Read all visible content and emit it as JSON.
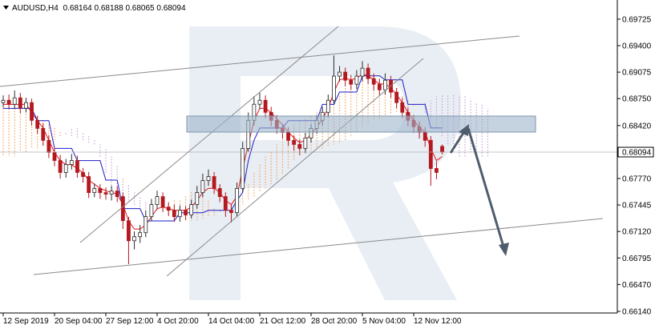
{
  "chart_data": {
    "type": "candlestick",
    "symbol": "AUDUSD,H4",
    "header_ohlc": [
      0.68164,
      0.68188,
      0.68065,
      0.68094
    ],
    "last_price": 0.68094,
    "up_color": "#2b2b2b",
    "down_color": "#b3191f",
    "categories": [
      "12 Sep 2019",
      null,
      null,
      null,
      null,
      null,
      null,
      null,
      null,
      "20 Sep 04:00",
      null,
      null,
      null,
      null,
      null,
      null,
      null,
      null,
      "27 Sep 12:00",
      null,
      null,
      null,
      null,
      null,
      null,
      null,
      null,
      "4 Oct 20:00",
      null,
      null,
      null,
      null,
      null,
      null,
      null,
      null,
      "14 Oct 04:00",
      null,
      null,
      null,
      null,
      null,
      null,
      null,
      null,
      "21 Oct 12:00",
      null,
      null,
      null,
      null,
      null,
      null,
      null,
      null,
      "28 Oct 20:00",
      null,
      null,
      null,
      null,
      null,
      null,
      null,
      null,
      "5 Nov 04:00",
      null,
      null,
      null,
      null,
      null,
      null,
      null,
      null,
      "12 Nov 12:00",
      null,
      null,
      null,
      null,
      null,
      null,
      null,
      null,
      null,
      null,
      null,
      null,
      null
    ],
    "open": [
      0.687,
      0.6873,
      0.68681,
      0.6876,
      0.68632,
      0.68701,
      0.68484,
      0.68385,
      0.68238,
      0.6809,
      0.67991,
      0.67844,
      0.67942,
      0.67991,
      0.67844,
      0.67794,
      0.67597,
      0.67647,
      0.67597,
      0.67578,
      0.67617,
      0.67548,
      0.67253,
      0.67006,
      0.67056,
      0.67105,
      0.67302,
      0.6745,
      0.67548,
      0.6742,
      0.67381,
      0.67302,
      0.67381,
      0.67322,
      0.6745,
      0.67597,
      0.67745,
      0.67794,
      0.67647,
      0.67548,
      0.67381,
      0.67351,
      0.67647,
      0.68139,
      0.68484,
      0.68681,
      0.6873,
      0.68582,
      0.68484,
      0.68385,
      0.68336,
      0.68238,
      0.68188,
      0.68139,
      0.68267,
      0.68385,
      0.68484,
      0.68582,
      0.6873,
      0.69026,
      0.69075,
      0.68976,
      0.68927,
      0.69026,
      0.69124,
      0.68996,
      0.68927,
      0.68858,
      0.68976,
      0.68829,
      0.68701,
      0.68582,
      0.68484,
      0.68405,
      0.68336,
      0.68238,
      0.67893,
      0.68164,
      null,
      null,
      null,
      null,
      null,
      null,
      null,
      null
    ],
    "high": [
      0.6879,
      0.688,
      0.6885,
      0.6882,
      0.6876,
      0.6875,
      0.6854,
      0.6845,
      0.683,
      0.6815,
      0.6806,
      0.6801,
      0.6807,
      0.6805,
      0.679,
      0.6785,
      0.6771,
      0.677,
      0.6766,
      0.6768,
      0.6767,
      0.676,
      0.673,
      0.6712,
      0.672,
      0.6738,
      0.6752,
      0.6762,
      0.676,
      0.6748,
      0.6745,
      0.6744,
      0.6743,
      0.6751,
      0.6768,
      0.6783,
      0.6788,
      0.6785,
      0.677,
      0.676,
      0.6745,
      0.6772,
      0.6822,
      0.6858,
      0.6878,
      0.6882,
      0.6879,
      0.6865,
      0.6855,
      0.6844,
      0.684,
      0.683,
      0.6825,
      0.6833,
      0.6844,
      0.6855,
      0.6865,
      0.688,
      0.6928,
      0.6915,
      0.6913,
      0.6904,
      0.691,
      0.6921,
      0.6918,
      0.6906,
      0.6899,
      0.6906,
      0.6903,
      0.6888,
      0.6876,
      0.6864,
      0.6855,
      0.6847,
      0.684,
      0.6829,
      0.6798,
      0.68188,
      null,
      null,
      null,
      null,
      null,
      null,
      null,
      null
    ],
    "low": [
      0.6864,
      0.6862,
      0.6862,
      0.6857,
      0.6858,
      0.6842,
      0.6832,
      0.6817,
      0.6802,
      0.6792,
      0.6777,
      0.6778,
      0.6788,
      0.6778,
      0.6772,
      0.6753,
      0.6754,
      0.6752,
      0.6751,
      0.675,
      0.6748,
      0.6715,
      0.6672,
      0.669,
      0.6698,
      0.6705,
      0.6725,
      0.674,
      0.6736,
      0.6731,
      0.6724,
      0.6724,
      0.6726,
      0.6728,
      0.674,
      0.6754,
      0.6768,
      0.6758,
      0.6748,
      0.673,
      0.6723,
      0.673,
      0.676,
      0.681,
      0.6842,
      0.6862,
      0.6851,
      0.6841,
      0.6832,
      0.6826,
      0.6817,
      0.6811,
      0.6806,
      0.6808,
      0.6821,
      0.6832,
      0.6842,
      0.6852,
      0.6868,
      0.6896,
      0.689,
      0.6886,
      0.6887,
      0.6896,
      0.6893,
      0.6885,
      0.6879,
      0.688,
      0.6876,
      0.6863,
      0.6851,
      0.6841,
      0.6833,
      0.6826,
      0.6816,
      0.6768,
      0.6776,
      0.68065,
      null,
      null,
      null,
      null,
      null,
      null,
      null,
      null
    ],
    "close": [
      0.6873,
      0.68681,
      0.6876,
      0.68632,
      0.68701,
      0.68484,
      0.68385,
      0.68238,
      0.6809,
      0.67991,
      0.67844,
      0.67942,
      0.67991,
      0.67844,
      0.67794,
      0.67597,
      0.67647,
      0.67597,
      0.67578,
      0.67617,
      0.67548,
      0.67253,
      0.67006,
      0.67056,
      0.67105,
      0.67302,
      0.6745,
      0.67548,
      0.6742,
      0.67381,
      0.67302,
      0.67381,
      0.67322,
      0.6745,
      0.67597,
      0.67745,
      0.67794,
      0.67647,
      0.67548,
      0.67381,
      0.67351,
      0.67647,
      0.68139,
      0.68484,
      0.68681,
      0.6873,
      0.68582,
      0.68484,
      0.68385,
      0.68336,
      0.68238,
      0.68188,
      0.68139,
      0.68267,
      0.68385,
      0.68484,
      0.68582,
      0.6873,
      0.69026,
      0.69075,
      0.68976,
      0.68927,
      0.69026,
      0.69124,
      0.68996,
      0.68927,
      0.68858,
      0.68976,
      0.68829,
      0.68701,
      0.68582,
      0.68484,
      0.68405,
      0.68336,
      0.68238,
      0.67893,
      0.67844,
      0.68094,
      null,
      null,
      null,
      null,
      null,
      null,
      null,
      null
    ],
    "series": [
      {
        "color": "#e3141b",
        "values": [
          0.6868,
          0.6868,
          0.6868,
          0.6868,
          0.6868,
          0.6858,
          0.6848,
          0.6839,
          0.6824,
          0.6809,
          0.6799,
          0.6794,
          0.6794,
          0.6789,
          0.6784,
          0.6775,
          0.677,
          0.6765,
          0.6762,
          0.676,
          0.6758,
          0.6745,
          0.6725,
          0.6715,
          0.6715,
          0.672,
          0.673,
          0.674,
          0.6742,
          0.674,
          0.6738,
          0.6738,
          0.6738,
          0.6742,
          0.675,
          0.676,
          0.6765,
          0.6765,
          0.676,
          0.675,
          0.6745,
          0.6755,
          0.6789,
          0.6819,
          0.6848,
          0.6863,
          0.6863,
          0.6858,
          0.685,
          0.6843,
          0.6834,
          0.6827,
          0.6821,
          0.6824,
          0.6831,
          0.684,
          0.685,
          0.6863,
          0.6883,
          0.6898,
          0.69,
          0.6898,
          0.69,
          0.6905,
          0.6903,
          0.6898,
          0.6893,
          0.6893,
          0.6888,
          0.688,
          0.687,
          0.6858,
          0.6848,
          0.684,
          0.6834,
          0.6814,
          0.6799,
          0.6804,
          null,
          null,
          null,
          null,
          null,
          null,
          null,
          null
        ]
      },
      {
        "color": "#1c1cc8",
        "values": [
          0.6863,
          0.6863,
          0.6863,
          0.6863,
          0.6863,
          0.6863,
          0.6848,
          0.6848,
          0.6848,
          0.6814,
          0.6814,
          0.6814,
          0.6814,
          0.6799,
          0.6799,
          0.6799,
          0.6799,
          0.6799,
          0.6775,
          0.6775,
          0.6775,
          0.674,
          0.674,
          0.674,
          0.674,
          0.6725,
          0.6725,
          0.6725,
          0.6725,
          0.6725,
          0.6725,
          0.6735,
          0.6735,
          0.6735,
          0.6735,
          0.6735,
          0.6738,
          0.6738,
          0.6738,
          0.6738,
          0.6738,
          0.675,
          0.676,
          0.6799,
          0.6824,
          0.6839,
          0.6839,
          0.6839,
          0.6839,
          0.6839,
          0.6848,
          0.6848,
          0.6848,
          0.6848,
          0.6848,
          0.6848,
          0.6868,
          0.6868,
          0.6868,
          0.6883,
          0.6883,
          0.6883,
          0.6883,
          0.6903,
          0.6903,
          0.6903,
          0.6903,
          0.6898,
          0.6898,
          0.6898,
          0.6898,
          0.6868,
          0.6868,
          0.6868,
          0.6868,
          0.6839,
          0.6839,
          0.6839,
          null,
          null,
          null,
          null,
          null,
          null,
          null,
          null
        ]
      }
    ],
    "cloud": {
      "colors": [
        "#f2a25c",
        "#c9a3d6"
      ],
      "span_a": [
        0.6873,
        0.6873,
        0.687,
        0.6868,
        0.6863,
        0.6858,
        0.6853,
        0.6848,
        0.6843,
        0.6839,
        0.6834,
        0.6831,
        0.6829,
        0.6827,
        0.6824,
        0.6821,
        0.6819,
        0.6804,
        0.6784,
        0.6765,
        0.676,
        0.6755,
        0.675,
        0.6745,
        0.6742,
        0.674,
        0.6738,
        0.6738,
        0.6742,
        0.6745,
        0.675,
        0.675,
        0.6755,
        0.676,
        0.6765,
        0.676,
        0.675,
        0.674,
        0.6738,
        0.674,
        0.6745,
        0.675,
        0.676,
        0.677,
        0.6784,
        0.6794,
        0.6804,
        0.6809,
        0.6819,
        0.6829,
        0.6839,
        0.6843,
        0.6848,
        0.685,
        0.6853,
        0.6858,
        0.686,
        0.6863,
        0.6868,
        0.6878,
        0.6888,
        0.6893,
        0.6898,
        0.69,
        0.6903,
        0.6903,
        0.69,
        0.6898,
        0.6893,
        0.6888,
        0.6878,
        0.6873,
        0.6868,
        0.6868,
        0.6858,
        0.6848,
        0.6839,
        0.6829,
        0.6819,
        0.6809,
        0.6804,
        0.6804,
        0.6809,
        0.6809,
        0.6804,
        0.6804
      ],
      "span_b": [
        0.6804,
        0.6804,
        0.6804,
        0.6809,
        0.6809,
        0.6814,
        0.6814,
        0.6819,
        0.6824,
        0.6824,
        0.6829,
        0.6834,
        0.6839,
        0.6839,
        0.6834,
        0.6829,
        0.6824,
        0.6819,
        0.6814,
        0.6804,
        0.6794,
        0.6779,
        0.677,
        0.676,
        0.6755,
        0.675,
        0.6745,
        0.674,
        0.6735,
        0.6732,
        0.673,
        0.6728,
        0.6725,
        0.6725,
        0.6725,
        0.6728,
        0.673,
        0.6732,
        0.6735,
        0.6738,
        0.674,
        0.6742,
        0.6745,
        0.675,
        0.6755,
        0.676,
        0.6765,
        0.677,
        0.6775,
        0.6781,
        0.6789,
        0.6799,
        0.6804,
        0.6809,
        0.6811,
        0.6814,
        0.6814,
        0.6817,
        0.6819,
        0.6821,
        0.6824,
        0.6829,
        0.6834,
        0.6839,
        0.6843,
        0.6848,
        0.685,
        0.6853,
        0.6856,
        0.6858,
        0.686,
        0.6863,
        0.6866,
        0.6868,
        0.687,
        0.6873,
        0.6878,
        0.688,
        0.688,
        0.688,
        0.688,
        0.6878,
        0.6873,
        0.687,
        0.6868,
        0.6863
      ]
    },
    "ylim": [
      0.6612,
      0.6996
    ],
    "yticks": [
      0.69725,
      {
        "value": 0.694,
        "label": "0.69400"
      },
      0.69075,
      {
        "value": 0.6875,
        "label": "0.68750"
      },
      {
        "value": 0.6842,
        "label": "0.68420"
      },
      {
        "value": 0.6777,
        "label": "0.67770"
      },
      0.67445,
      {
        "value": 0.6712,
        "label": "0.67120"
      },
      0.66795,
      {
        "value": 0.6647,
        "label": "0.66470"
      },
      {
        "value": 0.6614,
        "label": "0.66140"
      }
    ]
  }
}
